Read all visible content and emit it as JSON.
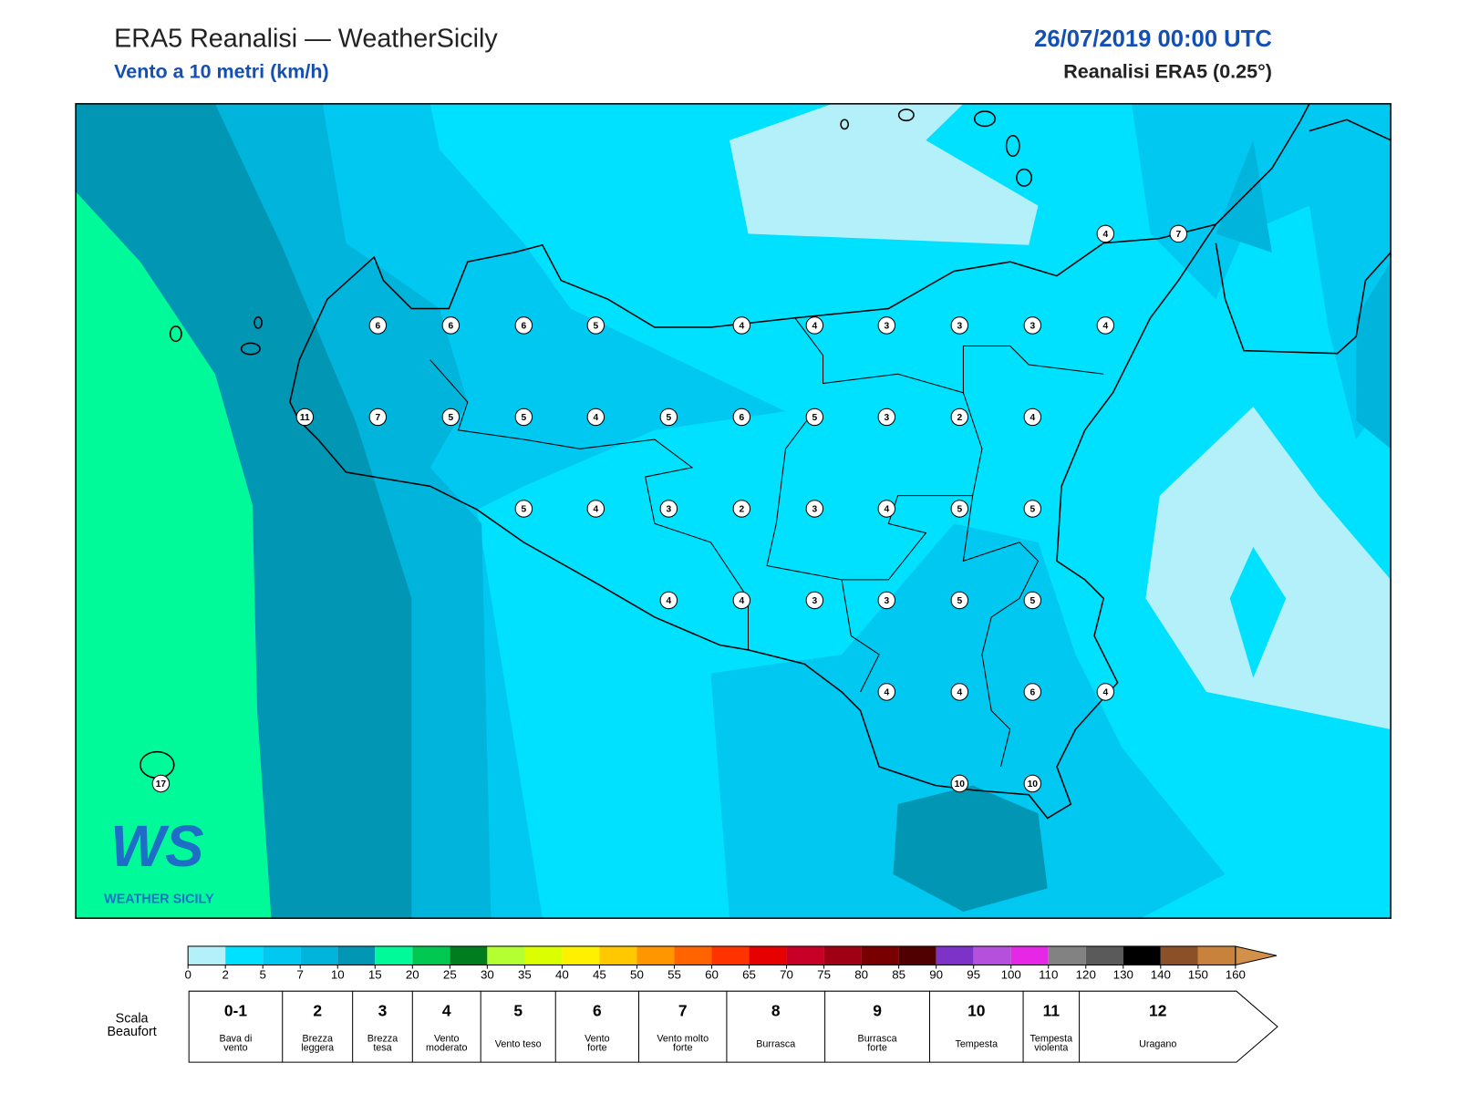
{
  "header": {
    "title": "ERA5 Reanalisi — WeatherSicily",
    "subtitle": "Vento a 10 metri (km/h)",
    "date": "26/07/2019 00:00 UTC",
    "source": "Reanalisi ERA5 (0.25°)"
  },
  "logo": {
    "mark": "WS",
    "name": "WEATHER SICILY"
  },
  "stations": [
    6,
    6,
    6,
    5,
    4,
    4,
    3,
    3,
    3,
    4,
    11,
    7,
    5,
    5,
    4,
    5,
    6,
    5,
    3,
    2,
    4,
    5,
    4,
    3,
    2,
    3,
    4,
    5,
    5,
    4,
    4,
    3,
    3,
    5,
    5,
    4,
    4,
    6,
    4,
    10,
    10,
    4,
    7,
    17
  ],
  "colorbar": {
    "ticks": [
      0,
      2,
      5,
      7,
      10,
      15,
      20,
      25,
      30,
      35,
      40,
      45,
      50,
      55,
      60,
      65,
      70,
      75,
      80,
      85,
      90,
      95,
      100,
      110,
      120,
      130,
      140,
      150,
      160
    ],
    "colors": [
      "#b4f0fa",
      "#00e1ff",
      "#00c8f0",
      "#00b4dc",
      "#0096b4",
      "#00fa9a",
      "#00c850",
      "#007d1e",
      "#b4ff32",
      "#dcff00",
      "#fff000",
      "#ffc800",
      "#ff9600",
      "#ff6400",
      "#ff3200",
      "#e60000",
      "#c80028",
      "#a00014",
      "#780000",
      "#500000",
      "#7d32c8",
      "#b450dc",
      "#e628e6",
      "#828282",
      "#5a5a5a",
      "#000000",
      "#8c5028",
      "#c8823c"
    ],
    "extend_color": "#d2914b"
  },
  "beaufort": {
    "label": [
      "Scala",
      "Beaufort"
    ],
    "levels": [
      {
        "force": "0-1",
        "desc": [
          "Bava di",
          "vento"
        ]
      },
      {
        "force": "2",
        "desc": [
          "Brezza",
          "leggera"
        ]
      },
      {
        "force": "3",
        "desc": [
          "Brezza",
          "tesa"
        ]
      },
      {
        "force": "4",
        "desc": [
          "Vento",
          "moderato"
        ]
      },
      {
        "force": "5",
        "desc": [
          "Vento teso"
        ]
      },
      {
        "force": "6",
        "desc": [
          "Vento",
          "forte"
        ]
      },
      {
        "force": "7",
        "desc": [
          "Vento molto",
          "forte"
        ]
      },
      {
        "force": "8",
        "desc": [
          "Burrasca"
        ]
      },
      {
        "force": "9",
        "desc": [
          "Burrasca",
          "forte"
        ]
      },
      {
        "force": "10",
        "desc": [
          "Tempesta"
        ]
      },
      {
        "force": "11",
        "desc": [
          "Tempesta",
          "violenta"
        ]
      },
      {
        "force": "12",
        "desc": [
          "Uragano"
        ]
      }
    ]
  }
}
